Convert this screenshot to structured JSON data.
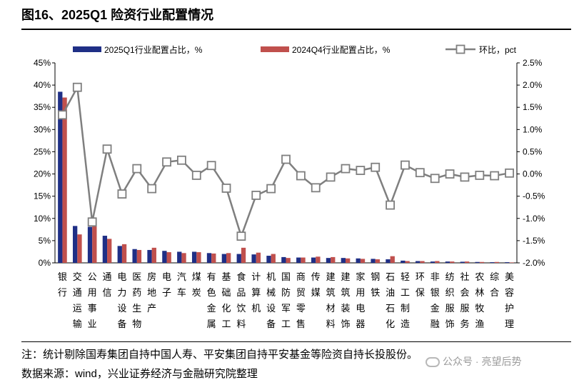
{
  "title": "图16、2025Q1 险资行业配置情况",
  "note": "注：统计剔除国寿集团自持中国人寿、平安集团自持平安基金等险资自持长投股份。",
  "source": "数据来源：wind，兴业证券经济与金融研究院整理",
  "watermark": "公众号 · 亮望后势",
  "chart_data": {
    "type": "bar",
    "categories": [
      "银行",
      "交通运输",
      "公用事业",
      "通信",
      "电力设备",
      "医药生物",
      "房地产",
      "电子",
      "汽车",
      "煤炭",
      "有色金属",
      "基础化工",
      "食品饮料",
      "计算机",
      "机械设备",
      "国防军工",
      "商贸零售",
      "传媒",
      "建筑材料",
      "建筑装饰",
      "家用电器",
      "钢铁",
      "石油石化",
      "轻工制造",
      "环保",
      "非银金融",
      "纺织服饰",
      "社会服务",
      "农林牧渔",
      "综合",
      "美容护理"
    ],
    "series": [
      {
        "name": "2025Q1行业配置占比，%",
        "type": "bar",
        "axis": "left",
        "color": "#1f2f86",
        "values": [
          38.5,
          8.3,
          8.1,
          6.1,
          3.8,
          3.1,
          2.9,
          2.7,
          2.5,
          2.5,
          2.2,
          2.0,
          2.0,
          1.9,
          1.6,
          1.3,
          1.2,
          1.2,
          1.1,
          1.1,
          1.0,
          0.9,
          0.8,
          0.5,
          0.4,
          0.3,
          0.3,
          0.25,
          0.2,
          0.15,
          0.15
        ]
      },
      {
        "name": "2024Q4行业配置占比，%",
        "type": "bar",
        "axis": "left",
        "color": "#c0504d",
        "values": [
          37.2,
          6.4,
          9.1,
          5.4,
          4.2,
          2.9,
          3.4,
          2.4,
          2.2,
          2.4,
          2.1,
          2.2,
          3.4,
          2.3,
          2.0,
          1.1,
          1.2,
          1.4,
          1.3,
          1.0,
          0.9,
          0.8,
          1.5,
          0.4,
          0.4,
          0.4,
          0.3,
          0.3,
          0.2,
          0.2,
          0.1
        ]
      },
      {
        "name": "环比，pct",
        "type": "line",
        "axis": "right",
        "color": "#7f7f7f",
        "values": [
          1.33,
          1.95,
          -1.08,
          0.56,
          -0.45,
          0.12,
          -0.33,
          0.27,
          0.31,
          -0.03,
          0.19,
          -0.32,
          -1.4,
          -0.48,
          -0.33,
          0.33,
          -0.04,
          -0.31,
          -0.07,
          0.12,
          0.08,
          0.15,
          -0.7,
          0.2,
          0.03,
          -0.1,
          0.0,
          -0.07,
          -0.03,
          -0.04,
          0.02
        ]
      }
    ],
    "left_axis": {
      "min": 0,
      "max": 45,
      "step": 5,
      "format": "pct0"
    },
    "right_axis": {
      "min": -2.0,
      "max": 2.5,
      "step": 0.5,
      "format": "pct1"
    },
    "legend_position": "top",
    "grid": false
  }
}
